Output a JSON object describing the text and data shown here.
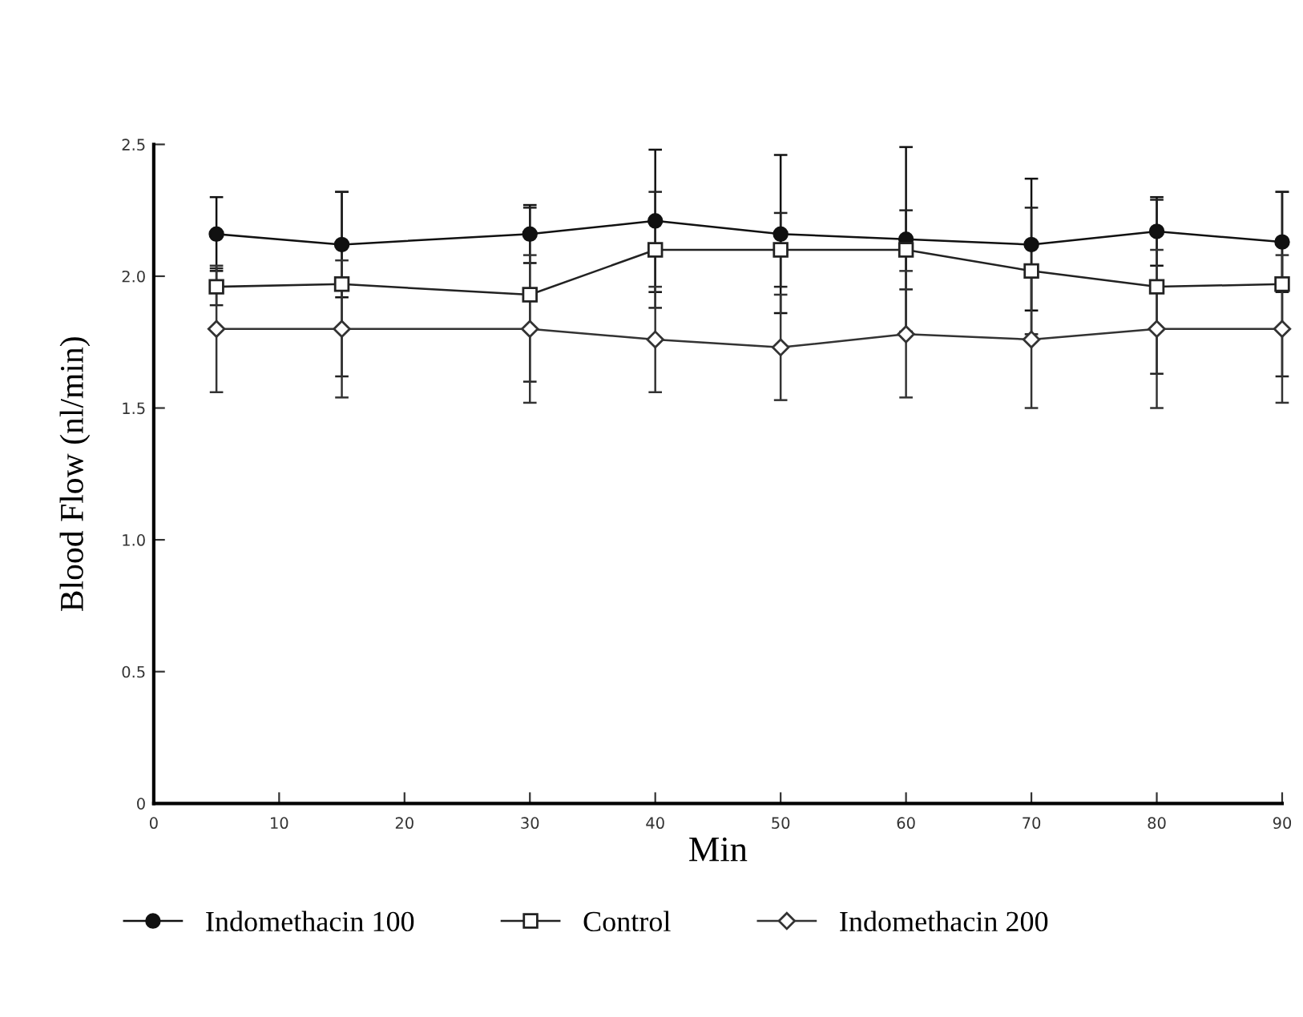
{
  "chart_data": {
    "type": "line",
    "xlabel": "Min",
    "ylabel": "Blood Flow (nl/min)",
    "x": [
      5,
      15,
      30,
      40,
      50,
      60,
      70,
      80,
      90
    ],
    "series": [
      {
        "name": "Indomethacin 100",
        "color": "#111111",
        "marker": "circle",
        "values": [
          2.16,
          2.12,
          2.16,
          2.21,
          2.16,
          2.14,
          2.12,
          2.17,
          2.13
        ],
        "errors": [
          0.14,
          0.2,
          0.11,
          0.27,
          0.3,
          0.35,
          0.25,
          0.13,
          0.19
        ]
      },
      {
        "name": "Control",
        "color": "#222222",
        "marker": "square",
        "values": [
          1.96,
          1.97,
          1.93,
          2.1,
          2.1,
          2.1,
          2.02,
          1.96,
          1.97
        ],
        "errors": [
          0.07,
          0.35,
          0.33,
          0.22,
          0.14,
          0.15,
          0.24,
          0.33,
          0.35
        ]
      },
      {
        "name": "Indomethacin 200",
        "color": "#333333",
        "marker": "diamond",
        "values": [
          1.8,
          1.8,
          1.8,
          1.76,
          1.73,
          1.78,
          1.76,
          1.8,
          1.8
        ],
        "errors": [
          0.24,
          0.26,
          0.28,
          0.2,
          0.2,
          0.24,
          0.26,
          0.3,
          0.28
        ]
      }
    ],
    "xlim": [
      0,
      90
    ],
    "xticks": [
      0,
      10,
      20,
      30,
      40,
      50,
      60,
      70,
      80,
      90
    ],
    "ylim": [
      0,
      2.5
    ],
    "yticks": [
      0,
      {
        "value": 0.5,
        "label": "0.5"
      },
      {
        "value": 1.0,
        "label": "1.0"
      },
      {
        "value": 1.5,
        "label": "1.5"
      },
      {
        "value": 2.0,
        "label": "2.0"
      },
      {
        "value": 2.5,
        "label": "2.5"
      }
    ],
    "grid": false,
    "legend": "bottom",
    "line_style": "solid"
  }
}
